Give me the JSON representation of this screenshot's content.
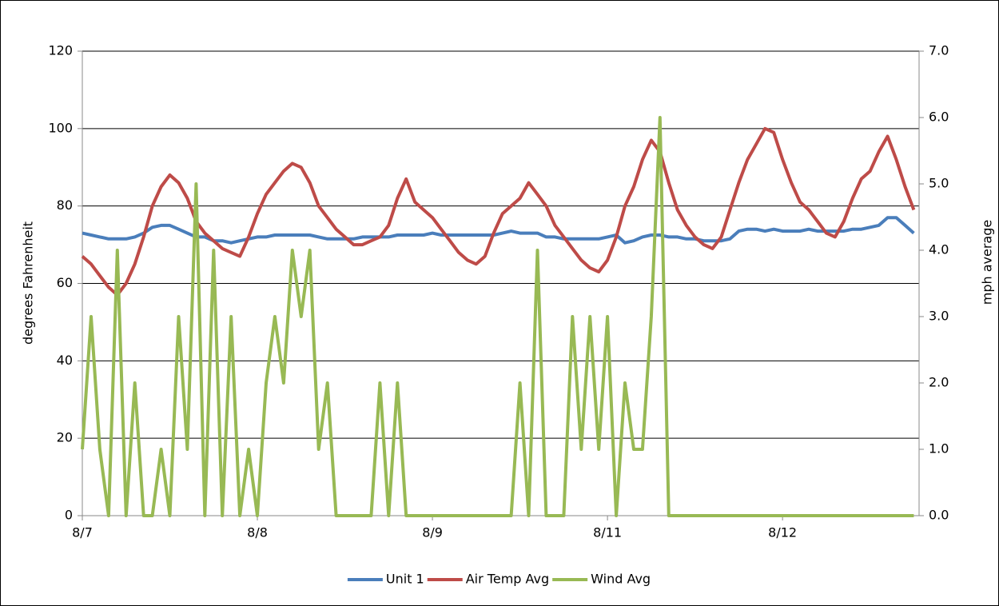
{
  "chart_data": {
    "type": "line",
    "y_label": "degrees Fahrenheit",
    "y2_label": "mph average",
    "x": [
      0,
      0.05,
      0.1,
      0.15,
      0.2,
      0.25,
      0.3,
      0.35,
      0.4,
      0.45,
      0.5,
      0.55,
      0.6,
      0.65,
      0.7,
      0.75,
      0.8,
      0.85,
      0.9,
      0.95,
      1,
      1.05,
      1.1,
      1.15,
      1.2,
      1.25,
      1.3,
      1.35,
      1.4,
      1.45,
      1.5,
      1.55,
      1.6,
      1.65,
      1.7,
      1.75,
      1.8,
      1.85,
      1.9,
      1.95,
      2,
      2.05,
      2.1,
      2.15,
      2.2,
      2.25,
      2.3,
      2.35,
      2.4,
      2.45,
      2.5,
      2.55,
      2.6,
      2.65,
      2.7,
      2.75,
      2.8,
      2.85,
      2.9,
      2.95,
      3,
      3.05,
      3.1,
      3.15,
      3.2,
      3.25,
      3.3,
      3.35,
      3.4,
      3.45,
      3.5,
      3.55,
      3.6,
      3.65,
      3.7,
      3.75,
      3.8,
      3.85,
      3.9,
      3.95,
      4,
      4.05,
      4.1,
      4.15,
      4.2,
      4.25,
      4.3,
      4.35,
      4.4,
      4.45,
      4.5,
      4.55,
      4.6,
      4.65,
      4.7,
      4.75
    ],
    "xlim": [
      0,
      4.78
    ],
    "xticks": [
      {
        "value": 0,
        "label": "8/7"
      },
      {
        "value": 1,
        "label": "8/8"
      },
      {
        "value": 2,
        "label": "8/9"
      },
      {
        "value": 3,
        "label": "8/11"
      },
      {
        "value": 4,
        "label": "8/12"
      }
    ],
    "ylim": [
      0,
      120
    ],
    "yticks": [
      0,
      20,
      40,
      60,
      80,
      100,
      120
    ],
    "y2lim": [
      0,
      7
    ],
    "y2ticks": [
      {
        "value": 0,
        "label": "0.0"
      },
      {
        "value": 1,
        "label": "1.0"
      },
      {
        "value": 2,
        "label": "2.0"
      },
      {
        "value": 3,
        "label": "3.0"
      },
      {
        "value": 4,
        "label": "4.0"
      },
      {
        "value": 5,
        "label": "5.0"
      },
      {
        "value": 6,
        "label": "6.0"
      },
      {
        "value": 7,
        "label": "7.0"
      }
    ],
    "grid": true,
    "legend": "bottom",
    "series": [
      {
        "name": "Unit 1",
        "color": "#4a7ebb",
        "values": [
          73,
          72.5,
          72,
          71.5,
          71.5,
          71.5,
          72,
          73,
          74.5,
          75,
          75,
          74,
          73,
          72,
          72,
          71,
          71,
          70.5,
          71,
          71.5,
          72,
          72,
          72.5,
          72.5,
          72.5,
          72.5,
          72.5,
          72,
          71.5,
          71.5,
          71.5,
          71.5,
          72,
          72,
          72,
          72,
          72.5,
          72.5,
          72.5,
          72.5,
          73,
          72.5,
          72.5,
          72.5,
          72.5,
          72.5,
          72.5,
          72.5,
          73,
          73.5,
          73,
          73,
          73,
          72,
          72,
          71.5,
          71.5,
          71.5,
          71.5,
          71.5,
          72,
          72.5,
          70.5,
          71,
          72,
          72.5,
          72.5,
          72,
          72,
          71.5,
          71.5,
          71,
          71,
          71,
          71.5,
          73.5,
          74,
          74,
          73.5,
          74,
          73.5,
          73.5,
          73.5,
          74,
          73.5,
          73.5,
          73.5,
          73.5,
          74,
          74,
          74.5,
          75,
          77,
          77,
          75,
          73
        ]
      },
      {
        "name": "Air Temp Avg",
        "color": "#be4b48",
        "values": [
          67,
          65,
          62,
          59,
          57,
          60,
          65,
          72,
          80,
          85,
          88,
          86,
          82,
          76,
          73,
          71,
          69,
          68,
          67,
          72,
          78,
          83,
          86,
          89,
          91,
          90,
          86,
          80,
          77,
          74,
          72,
          70,
          70,
          71,
          72,
          75,
          82,
          87,
          81,
          79,
          77,
          74,
          71,
          68,
          66,
          65,
          67,
          73,
          78,
          80,
          82,
          86,
          83,
          80,
          75,
          72,
          69,
          66,
          64,
          63,
          66,
          72,
          80,
          85,
          92,
          97,
          94,
          86,
          79,
          75,
          72,
          70,
          69,
          72,
          79,
          86,
          92,
          96,
          100,
          99,
          92,
          86,
          81,
          79,
          76,
          73,
          72,
          76,
          82,
          87,
          89,
          94,
          98,
          92,
          85,
          79
        ]
      },
      {
        "name": "Wind Avg",
        "color": "#98b954",
        "axis": "y2",
        "values": [
          1,
          3,
          1,
          0,
          4,
          0,
          2,
          0,
          0,
          1,
          0,
          3,
          1,
          5,
          0,
          4,
          0,
          3,
          0,
          1,
          0,
          2,
          3,
          2,
          4,
          3,
          4,
          1,
          2,
          0,
          0,
          0,
          0,
          0,
          2,
          0,
          2,
          0,
          0,
          0,
          0,
          0,
          0,
          0,
          0,
          0,
          0,
          0,
          0,
          0,
          2,
          0,
          4,
          0,
          0,
          0,
          3,
          1,
          3,
          1,
          3,
          0,
          2,
          1,
          1,
          3,
          6,
          0,
          0,
          0,
          0,
          0,
          0,
          0,
          0,
          0,
          0,
          0,
          0,
          0,
          0,
          0,
          0,
          0,
          0,
          0,
          0,
          0,
          0,
          0,
          0,
          0,
          0,
          0,
          0,
          0
        ]
      }
    ]
  }
}
